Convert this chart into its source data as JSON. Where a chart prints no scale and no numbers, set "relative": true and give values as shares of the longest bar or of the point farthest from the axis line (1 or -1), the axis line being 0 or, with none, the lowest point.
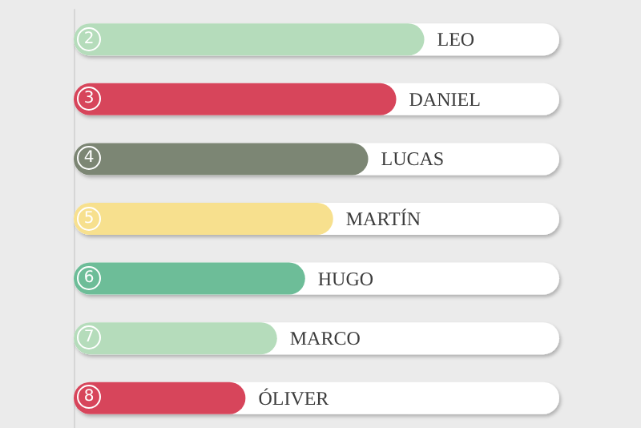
{
  "chart_data": {
    "type": "bar",
    "orientation": "horizontal",
    "relative": true,
    "categories": [
      "LEO",
      "DANIEL",
      "LUCAS",
      "MARTÍN",
      "HUGO",
      "MARCO",
      "ÓLIVER"
    ],
    "values": [
      1,
      0.92,
      0.84,
      0.74,
      0.66,
      0.58,
      0.49
    ],
    "colors": [
      "#b5dcbb",
      "#d7455b",
      "#7c8674",
      "#f7e08e",
      "#6dbd98",
      "#b5dcbb",
      "#d7455b"
    ],
    "annotations": [
      {
        "text": "2",
        "y": "LEO"
      },
      {
        "text": "3",
        "y": "DANIEL"
      },
      {
        "text": "4",
        "y": "LUCAS"
      },
      {
        "text": "5",
        "y": "MARTÍN"
      },
      {
        "text": "6",
        "y": "HUGO"
      },
      {
        "text": "7",
        "y": "MARCO"
      },
      {
        "text": "8",
        "y": "ÓLIVER"
      }
    ]
  }
}
